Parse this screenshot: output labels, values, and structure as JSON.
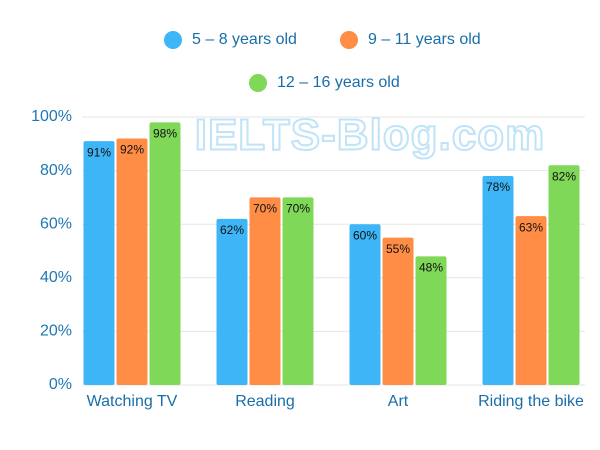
{
  "chart_data": {
    "type": "bar",
    "watermark": "IELTS-Blog.com",
    "categories": [
      "Watching TV",
      "Reading",
      "Art",
      "Riding the bike"
    ],
    "series": [
      {
        "name": "5 – 8 years old",
        "color": "#3db5f7",
        "values": [
          91,
          62,
          60,
          78
        ],
        "value_labels": [
          "91%",
          "62%",
          "60%",
          "78%"
        ]
      },
      {
        "name": "9 – 11 years old",
        "color": "#ff8d45",
        "values": [
          92,
          70,
          55,
          63
        ],
        "value_labels": [
          "92%",
          "70%",
          "55%",
          "63%"
        ]
      },
      {
        "name": "12 – 16 years old",
        "color": "#7fd858",
        "values": [
          98,
          70,
          48,
          82
        ],
        "value_labels": [
          "98%",
          "70%",
          "48%",
          "82%"
        ]
      }
    ],
    "ylim": [
      0,
      100
    ],
    "yticks": [
      {
        "value": 0,
        "label": "0%"
      },
      {
        "value": 20,
        "label": "20%"
      },
      {
        "value": 40,
        "label": "40%"
      },
      {
        "value": 60,
        "label": "60%"
      },
      {
        "value": 80,
        "label": "80%"
      },
      {
        "value": 100,
        "label": "100%"
      }
    ],
    "grid": true
  }
}
